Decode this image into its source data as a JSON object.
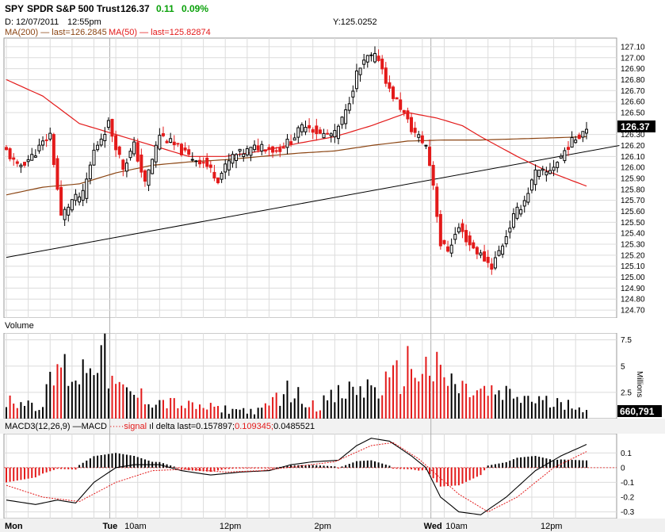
{
  "header": {
    "symbol": "SPY",
    "name": "SPDR S&P 500 Trust",
    "last": "126.37",
    "change": "0.11",
    "change_pct": "0.09%",
    "date_label": "D: 12/07/2011",
    "time_label": "12:55pm",
    "y_readout": "Y:125.0252",
    "ma200_label": "MA(200) — last=126.2845",
    "ma50_label": "MA(50) — last=125.82874"
  },
  "colors": {
    "up": "#000000",
    "down": "#e31a1a",
    "ma200": "#8b4513",
    "ma50": "#e31a1a",
    "grid": "#dcdcdc",
    "panel_sep": "#bdbdbd",
    "change": "#0aa10a"
  },
  "price_panel": {
    "ylim": [
      124.65,
      127.15
    ],
    "ticks": [
      "127.10",
      "127.00",
      "126.90",
      "126.80",
      "126.70",
      "126.60",
      "126.50",
      "126.30",
      "126.20",
      "126.10",
      "126.00",
      "125.90",
      "125.80",
      "125.70",
      "125.60",
      "125.50",
      "125.40",
      "125.30",
      "125.20",
      "125.10",
      "125.00",
      "124.90",
      "124.80",
      "124.70"
    ],
    "last_badge": "126.37"
  },
  "volume_panel": {
    "title": "Volume",
    "unit": "Millions",
    "ylim": [
      0,
      8
    ],
    "ticks": [
      "7.5",
      "5",
      "2.5"
    ],
    "last_badge": "660,791"
  },
  "macd_panel": {
    "label_parts": [
      "MACD3(12,26,9)",
      " —MACD ",
      "·····signal ",
      "ıl delta ",
      "last=0.157897;",
      "0.109345;",
      "0.0485521"
    ],
    "ylim": [
      -0.34,
      0.22
    ],
    "ticks": [
      "0.1",
      "0",
      "-0.1",
      "-0.2",
      "-0.3"
    ]
  },
  "x_axis": {
    "labels": [
      {
        "text": "Mon",
        "bar": 0
      },
      {
        "text": "Tue",
        "bar": 29
      },
      {
        "text": "10am",
        "bar": 35
      },
      {
        "text": "12pm",
        "bar": 61
      },
      {
        "text": "2pm",
        "bar": 87
      },
      {
        "text": "Wed",
        "bar": 117
      },
      {
        "text": "10am",
        "bar": 123
      },
      {
        "text": "12pm",
        "bar": 149
      }
    ]
  },
  "chart_data": {
    "type": "candlestick",
    "bars_total": 160,
    "day_boundaries": [
      29,
      117
    ],
    "ohlc_anchors": [
      {
        "bar": 0,
        "close": 126.15
      },
      {
        "bar": 3,
        "close": 126.0
      },
      {
        "bar": 7,
        "close": 126.1
      },
      {
        "bar": 12,
        "close": 126.3
      },
      {
        "bar": 15,
        "close": 125.55
      },
      {
        "bar": 18,
        "close": 125.7
      },
      {
        "bar": 21,
        "close": 125.75
      },
      {
        "bar": 24,
        "close": 126.15
      },
      {
        "bar": 28,
        "close": 126.4
      },
      {
        "bar": 32,
        "close": 126.0
      },
      {
        "bar": 35,
        "close": 126.2
      },
      {
        "bar": 38,
        "close": 125.85
      },
      {
        "bar": 42,
        "close": 126.3
      },
      {
        "bar": 46,
        "close": 126.2
      },
      {
        "bar": 50,
        "close": 126.1
      },
      {
        "bar": 54,
        "close": 126.05
      },
      {
        "bar": 58,
        "close": 125.9
      },
      {
        "bar": 62,
        "close": 126.1
      },
      {
        "bar": 66,
        "close": 126.15
      },
      {
        "bar": 70,
        "close": 126.2
      },
      {
        "bar": 74,
        "close": 126.15
      },
      {
        "bar": 78,
        "close": 126.25
      },
      {
        "bar": 82,
        "close": 126.4
      },
      {
        "bar": 86,
        "close": 126.3
      },
      {
        "bar": 90,
        "close": 126.3
      },
      {
        "bar": 93,
        "close": 126.5
      },
      {
        "bar": 96,
        "close": 126.85
      },
      {
        "bar": 99,
        "close": 127.0
      },
      {
        "bar": 102,
        "close": 127.0
      },
      {
        "bar": 105,
        "close": 126.7
      },
      {
        "bar": 108,
        "close": 126.55
      },
      {
        "bar": 111,
        "close": 126.35
      },
      {
        "bar": 115,
        "close": 126.2
      },
      {
        "bar": 117,
        "close": 125.85
      },
      {
        "bar": 119,
        "close": 125.3
      },
      {
        "bar": 121,
        "close": 125.25
      },
      {
        "bar": 124,
        "close": 125.45
      },
      {
        "bar": 127,
        "close": 125.3
      },
      {
        "bar": 130,
        "close": 125.2
      },
      {
        "bar": 133,
        "close": 125.1
      },
      {
        "bar": 136,
        "close": 125.3
      },
      {
        "bar": 139,
        "close": 125.55
      },
      {
        "bar": 142,
        "close": 125.7
      },
      {
        "bar": 145,
        "close": 125.95
      },
      {
        "bar": 148,
        "close": 125.95
      },
      {
        "bar": 151,
        "close": 126.05
      },
      {
        "bar": 154,
        "close": 126.2
      },
      {
        "bar": 157,
        "close": 126.3
      },
      {
        "bar": 159,
        "close": 126.37
      }
    ],
    "ma50": [
      {
        "bar": 0,
        "value": 126.8
      },
      {
        "bar": 10,
        "value": 126.65
      },
      {
        "bar": 20,
        "value": 126.4
      },
      {
        "bar": 30,
        "value": 126.3
      },
      {
        "bar": 40,
        "value": 126.2
      },
      {
        "bar": 50,
        "value": 126.1
      },
      {
        "bar": 60,
        "value": 126.1
      },
      {
        "bar": 70,
        "value": 126.15
      },
      {
        "bar": 80,
        "value": 126.22
      },
      {
        "bar": 90,
        "value": 126.28
      },
      {
        "bar": 100,
        "value": 126.38
      },
      {
        "bar": 110,
        "value": 126.5
      },
      {
        "bar": 118,
        "value": 126.45
      },
      {
        "bar": 125,
        "value": 126.38
      },
      {
        "bar": 130,
        "value": 126.28
      },
      {
        "bar": 140,
        "value": 126.1
      },
      {
        "bar": 148,
        "value": 125.97
      },
      {
        "bar": 155,
        "value": 125.88
      },
      {
        "bar": 159,
        "value": 125.83
      }
    ],
    "ma200": [
      {
        "bar": 0,
        "value": 125.75
      },
      {
        "bar": 10,
        "value": 125.82
      },
      {
        "bar": 20,
        "value": 125.85
      },
      {
        "bar": 30,
        "value": 125.95
      },
      {
        "bar": 40,
        "value": 126.02
      },
      {
        "bar": 50,
        "value": 126.05
      },
      {
        "bar": 60,
        "value": 126.07
      },
      {
        "bar": 70,
        "value": 126.1
      },
      {
        "bar": 80,
        "value": 126.13
      },
      {
        "bar": 90,
        "value": 126.15
      },
      {
        "bar": 100,
        "value": 126.2
      },
      {
        "bar": 110,
        "value": 126.24
      },
      {
        "bar": 120,
        "value": 126.25
      },
      {
        "bar": 130,
        "value": 126.25
      },
      {
        "bar": 140,
        "value": 126.26
      },
      {
        "bar": 150,
        "value": 126.27
      },
      {
        "bar": 159,
        "value": 126.28
      }
    ],
    "trendline": [
      {
        "bar": 0,
        "value": 125.18
      },
      {
        "bar": 168,
        "value": 126.2
      }
    ],
    "volume_anchors": [
      {
        "bar": 0,
        "value": 2.0
      },
      {
        "bar": 10,
        "value": 1.5
      },
      {
        "bar": 14,
        "value": 5.5
      },
      {
        "bar": 20,
        "value": 4.5
      },
      {
        "bar": 25,
        "value": 8.0
      },
      {
        "bar": 30,
        "value": 3.0
      },
      {
        "bar": 40,
        "value": 2.0
      },
      {
        "bar": 50,
        "value": 1.3
      },
      {
        "bar": 60,
        "value": 1.0
      },
      {
        "bar": 70,
        "value": 0.8
      },
      {
        "bar": 76,
        "value": 3.0
      },
      {
        "bar": 85,
        "value": 1.5
      },
      {
        "bar": 95,
        "value": 3.0
      },
      {
        "bar": 105,
        "value": 3.5
      },
      {
        "bar": 110,
        "value": 5.5
      },
      {
        "bar": 117,
        "value": 5.0
      },
      {
        "bar": 125,
        "value": 3.0
      },
      {
        "bar": 135,
        "value": 2.5
      },
      {
        "bar": 145,
        "value": 2.0
      },
      {
        "bar": 150,
        "value": 1.5
      },
      {
        "bar": 155,
        "value": 2.0
      },
      {
        "bar": 159,
        "value": 0.66
      }
    ],
    "macd": [
      {
        "bar": 0,
        "value": -0.22
      },
      {
        "bar": 8,
        "value": -0.25
      },
      {
        "bar": 14,
        "value": -0.22
      },
      {
        "bar": 19,
        "value": -0.24
      },
      {
        "bar": 24,
        "value": -0.1
      },
      {
        "bar": 30,
        "value": 0.0
      },
      {
        "bar": 35,
        "value": 0.02
      },
      {
        "bar": 42,
        "value": 0.02
      },
      {
        "bar": 48,
        "value": -0.02
      },
      {
        "bar": 56,
        "value": -0.05
      },
      {
        "bar": 64,
        "value": -0.03
      },
      {
        "bar": 72,
        "value": -0.02
      },
      {
        "bar": 78,
        "value": 0.02
      },
      {
        "bar": 84,
        "value": 0.04
      },
      {
        "bar": 91,
        "value": 0.05
      },
      {
        "bar": 96,
        "value": 0.15
      },
      {
        "bar": 100,
        "value": 0.2
      },
      {
        "bar": 105,
        "value": 0.18
      },
      {
        "bar": 111,
        "value": 0.08
      },
      {
        "bar": 115,
        "value": 0.0
      },
      {
        "bar": 119,
        "value": -0.2
      },
      {
        "bar": 124,
        "value": -0.3
      },
      {
        "bar": 130,
        "value": -0.32
      },
      {
        "bar": 137,
        "value": -0.2
      },
      {
        "bar": 145,
        "value": -0.02
      },
      {
        "bar": 152,
        "value": 0.08
      },
      {
        "bar": 159,
        "value": 0.158
      }
    ],
    "signal": [
      {
        "bar": 0,
        "value": -0.12
      },
      {
        "bar": 10,
        "value": -0.2
      },
      {
        "bar": 20,
        "value": -0.23
      },
      {
        "bar": 30,
        "value": -0.1
      },
      {
        "bar": 40,
        "value": -0.02
      },
      {
        "bar": 50,
        "value": -0.01
      },
      {
        "bar": 60,
        "value": -0.03
      },
      {
        "bar": 70,
        "value": -0.02
      },
      {
        "bar": 80,
        "value": 0.01
      },
      {
        "bar": 90,
        "value": 0.04
      },
      {
        "bar": 100,
        "value": 0.15
      },
      {
        "bar": 106,
        "value": 0.17
      },
      {
        "bar": 113,
        "value": 0.06
      },
      {
        "bar": 118,
        "value": -0.05
      },
      {
        "bar": 124,
        "value": -0.18
      },
      {
        "bar": 132,
        "value": -0.3
      },
      {
        "bar": 140,
        "value": -0.2
      },
      {
        "bar": 150,
        "value": 0.0
      },
      {
        "bar": 159,
        "value": 0.109
      }
    ]
  }
}
